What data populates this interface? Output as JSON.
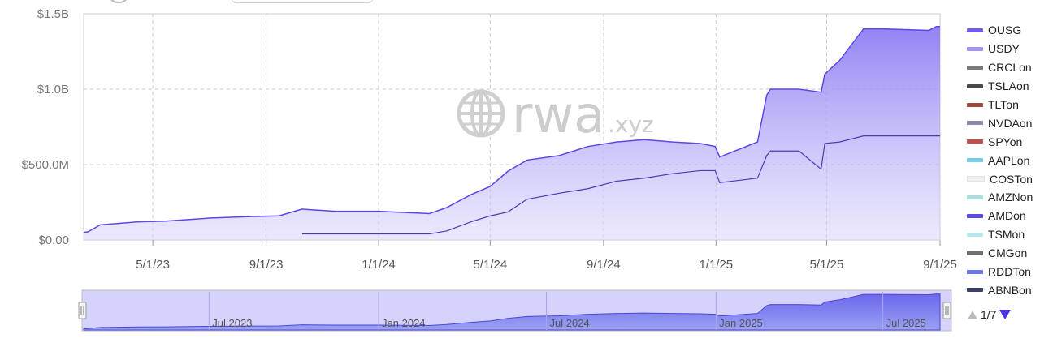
{
  "chart_data": {
    "type": "area",
    "xlabel": "",
    "ylabel": "",
    "y_tick_labels": [
      "$0.00",
      "$500.0M",
      "$1.0B",
      "$1.5B"
    ],
    "y_ticks": [
      0,
      500,
      1000,
      1500
    ],
    "ylim": [
      0,
      1500
    ],
    "y_units": "millions USD",
    "xlim": [
      "2023-02-15",
      "2025-09-01"
    ],
    "x_ticks": [
      {
        "date": "2023-05-01",
        "label": "5/1/23"
      },
      {
        "date": "2023-09-01",
        "label": "9/1/23"
      },
      {
        "date": "2024-01-01",
        "label": "1/1/24"
      },
      {
        "date": "2024-05-01",
        "label": "5/1/24"
      },
      {
        "date": "2024-09-01",
        "label": "9/1/24"
      },
      {
        "date": "2025-01-01",
        "label": "1/1/25"
      },
      {
        "date": "2025-05-01",
        "label": "5/1/25"
      },
      {
        "date": "2025-09-01",
        "label": "9/1/25"
      }
    ],
    "grid": true,
    "stacked": true,
    "legend_position": "right",
    "series": [
      {
        "name": "OUSG",
        "color": "#6f5df0",
        "points": [
          [
            "2023-10-10",
            40
          ],
          [
            "2024-02-25",
            40
          ],
          [
            "2024-03-15",
            60
          ],
          [
            "2024-04-10",
            120
          ],
          [
            "2024-05-01",
            160
          ],
          [
            "2024-05-20",
            185
          ],
          [
            "2024-06-10",
            270
          ],
          [
            "2024-07-15",
            310
          ],
          [
            "2024-08-15",
            340
          ],
          [
            "2024-09-15",
            390
          ],
          [
            "2024-10-15",
            410
          ],
          [
            "2024-11-15",
            440
          ],
          [
            "2024-12-15",
            460
          ],
          [
            "2024-12-31",
            460
          ],
          [
            "2025-01-05",
            380
          ],
          [
            "2025-02-15",
            410
          ],
          [
            "2025-02-25",
            560
          ],
          [
            "2025-03-01",
            590
          ],
          [
            "2025-04-01",
            590
          ],
          [
            "2025-04-25",
            470
          ],
          [
            "2025-04-29",
            640
          ],
          [
            "2025-05-15",
            650
          ],
          [
            "2025-06-10",
            690
          ],
          [
            "2025-09-01",
            690
          ]
        ]
      },
      {
        "name": "USDY",
        "color": "#a196f6",
        "points": [
          [
            "2023-02-15",
            50
          ],
          [
            "2023-02-20",
            55
          ],
          [
            "2023-03-05",
            100
          ],
          [
            "2023-04-15",
            120
          ],
          [
            "2023-05-15",
            125
          ],
          [
            "2023-07-01",
            145
          ],
          [
            "2023-08-15",
            155
          ],
          [
            "2023-09-15",
            160
          ],
          [
            "2023-10-10",
            165
          ],
          [
            "2023-10-20",
            160
          ],
          [
            "2023-11-15",
            150
          ],
          [
            "2024-01-01",
            150
          ],
          [
            "2024-02-25",
            135
          ],
          [
            "2024-03-15",
            155
          ],
          [
            "2024-04-10",
            180
          ],
          [
            "2024-05-01",
            195
          ],
          [
            "2024-05-20",
            270
          ],
          [
            "2024-06-10",
            260
          ],
          [
            "2024-07-15",
            250
          ],
          [
            "2024-08-15",
            280
          ],
          [
            "2024-09-15",
            260
          ],
          [
            "2024-10-15",
            255
          ],
          [
            "2024-11-15",
            210
          ],
          [
            "2024-12-15",
            180
          ],
          [
            "2024-12-31",
            160
          ],
          [
            "2025-01-05",
            170
          ],
          [
            "2025-02-15",
            240
          ],
          [
            "2025-02-25",
            400
          ],
          [
            "2025-03-01",
            410
          ],
          [
            "2025-04-01",
            410
          ],
          [
            "2025-04-25",
            510
          ],
          [
            "2025-04-29",
            460
          ],
          [
            "2025-05-15",
            540
          ],
          [
            "2025-06-10",
            710
          ],
          [
            "2025-07-01",
            710
          ],
          [
            "2025-08-20",
            700
          ],
          [
            "2025-08-28",
            725
          ],
          [
            "2025-09-01",
            725
          ]
        ]
      },
      {
        "name": "CRCLon",
        "color": "#7a7a7a",
        "points": []
      },
      {
        "name": "TSLAon",
        "color": "#4a4a4a",
        "points": []
      },
      {
        "name": "TLTon",
        "color": "#9b4a3c",
        "points": []
      },
      {
        "name": "NVDAon",
        "color": "#8f87aa",
        "points": []
      },
      {
        "name": "SPYon",
        "color": "#c0504d",
        "points": []
      },
      {
        "name": "AAPLon",
        "color": "#7cc9e8",
        "points": []
      },
      {
        "name": "COSTon",
        "color": "#f1f1f1",
        "points": []
      },
      {
        "name": "AMZNon",
        "color": "#a9dfe3",
        "points": []
      },
      {
        "name": "AMDon",
        "color": "#5a4be0",
        "points": []
      },
      {
        "name": "TSMon",
        "color": "#b7e6ef",
        "points": []
      },
      {
        "name": "CMGon",
        "color": "#6e6e6e",
        "points": []
      },
      {
        "name": "RDDTon",
        "color": "#6b78e6",
        "points": []
      },
      {
        "name": "ABNBon",
        "color": "#3c3f66",
        "points": []
      }
    ],
    "watermark": {
      "brand": "rwa",
      "suffix": ".xyz"
    },
    "navigator": {
      "labels": [
        {
          "date": "2023-07-01",
          "label": "Jul 2023"
        },
        {
          "date": "2024-01-01",
          "label": "Jan 2024"
        },
        {
          "date": "2024-07-01",
          "label": "Jul 2024"
        },
        {
          "date": "2025-01-01",
          "label": "Jan 2025"
        },
        {
          "date": "2025-07-01",
          "label": "Jul 2025"
        }
      ]
    }
  },
  "legend_pager": {
    "text": "1/7"
  }
}
